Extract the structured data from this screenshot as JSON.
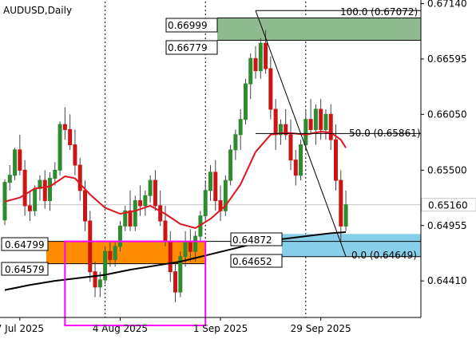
{
  "chart_data": {
    "type": "candlestick",
    "title": "AUDUSD,Daily",
    "y_range": [
      0.6405,
      0.6716
    ],
    "x_index_range": [
      0,
      82
    ],
    "y_ticks": [
      "0.67140",
      "0.66595",
      "0.66050",
      "0.65500",
      "0.64955",
      "0.64410"
    ],
    "current_price": {
      "label": "0.65160",
      "value": 0.6516
    },
    "x_ticks": [
      {
        "label": "7 Jul 2025",
        "index": 3
      },
      {
        "label": "4 Aug 2025",
        "index": 23
      },
      {
        "label": "1 Sep 2025",
        "index": 43
      },
      {
        "label": "29 Sep 2025",
        "index": 63
      }
    ],
    "period_separators": [
      20,
      40,
      60
    ],
    "price_labels": [
      "0.66999",
      "0.66779",
      "0.64872",
      "0.64652",
      "0.64799",
      "0.64579"
    ],
    "fib_labels": {
      "top": "100.0 (0.67072)",
      "mid": "50.0 (0.65861)",
      "bottom": "0.0 (0.64649)"
    },
    "fibonacci": {
      "high": 0.67072,
      "mid": 0.65861,
      "low": 0.64649,
      "start_index": 50,
      "end_index": 68
    },
    "zones": [
      {
        "name": "upper-supply",
        "top": 0.66999,
        "bottom": 0.66779,
        "color": "#8fbc8f"
      },
      {
        "name": "lower-demand",
        "top": 0.64872,
        "bottom": 0.64652,
        "color": "#87ceeb"
      },
      {
        "name": "left-orange",
        "top": 0.64799,
        "bottom": 0.64579,
        "color": "#ff8c00"
      }
    ],
    "magenta_box": {
      "from_index": 12,
      "to_index": 40,
      "top": 0.64799,
      "color": "#ff00ff"
    },
    "colors": {
      "bull": "#2e8b2e",
      "bear": "#cc1414",
      "ma_fast": "#e0141e",
      "ma_slow": "#000000",
      "axis": "#000000",
      "current": "#c8c8c8"
    },
    "candles": [
      [
        0.6501,
        0.6541,
        0.6496,
        0.6538
      ],
      [
        0.6538,
        0.6555,
        0.653,
        0.6545
      ],
      [
        0.6545,
        0.6572,
        0.654,
        0.657
      ],
      [
        0.657,
        0.6585,
        0.6545,
        0.655
      ],
      [
        0.655,
        0.656,
        0.6505,
        0.6515
      ],
      [
        0.6515,
        0.653,
        0.65,
        0.651
      ],
      [
        0.651,
        0.6535,
        0.6505,
        0.6532
      ],
      [
        0.6532,
        0.6545,
        0.652,
        0.654
      ],
      [
        0.654,
        0.655,
        0.6512,
        0.652
      ],
      [
        0.652,
        0.6548,
        0.651,
        0.6542
      ],
      [
        0.6542,
        0.6558,
        0.6535,
        0.655
      ],
      [
        0.655,
        0.6598,
        0.6545,
        0.6595
      ],
      [
        0.6595,
        0.6612,
        0.658,
        0.659
      ],
      [
        0.659,
        0.6605,
        0.657,
        0.6575
      ],
      [
        0.6575,
        0.659,
        0.6545,
        0.6555
      ],
      [
        0.6555,
        0.6562,
        0.652,
        0.653
      ],
      [
        0.653,
        0.654,
        0.649,
        0.65
      ],
      [
        0.65,
        0.651,
        0.644,
        0.645
      ],
      [
        0.645,
        0.646,
        0.6425,
        0.6435
      ],
      [
        0.6435,
        0.645,
        0.6425,
        0.6442
      ],
      [
        0.6442,
        0.6475,
        0.6438,
        0.647
      ],
      [
        0.647,
        0.648,
        0.6455,
        0.6462
      ],
      [
        0.6462,
        0.648,
        0.6455,
        0.6475
      ],
      [
        0.6475,
        0.65,
        0.647,
        0.6495
      ],
      [
        0.6495,
        0.6515,
        0.649,
        0.651
      ],
      [
        0.651,
        0.653,
        0.649,
        0.6495
      ],
      [
        0.6495,
        0.6525,
        0.649,
        0.652
      ],
      [
        0.652,
        0.6535,
        0.6505,
        0.6515
      ],
      [
        0.6515,
        0.653,
        0.6505,
        0.6525
      ],
      [
        0.6525,
        0.6545,
        0.6518,
        0.654
      ],
      [
        0.654,
        0.655,
        0.651,
        0.6515
      ],
      [
        0.6515,
        0.653,
        0.6495,
        0.65
      ],
      [
        0.65,
        0.6515,
        0.6475,
        0.648
      ],
      [
        0.648,
        0.649,
        0.644,
        0.645
      ],
      [
        0.645,
        0.646,
        0.642,
        0.643
      ],
      [
        0.643,
        0.647,
        0.6425,
        0.6465
      ],
      [
        0.6465,
        0.649,
        0.6455,
        0.648
      ],
      [
        0.648,
        0.6492,
        0.646,
        0.647
      ],
      [
        0.647,
        0.649,
        0.646,
        0.6485
      ],
      [
        0.6485,
        0.651,
        0.648,
        0.6505
      ],
      [
        0.6505,
        0.654,
        0.65,
        0.653
      ],
      [
        0.653,
        0.6555,
        0.652,
        0.6548
      ],
      [
        0.6548,
        0.656,
        0.651,
        0.652
      ],
      [
        0.652,
        0.6535,
        0.65,
        0.651
      ],
      [
        0.651,
        0.6545,
        0.6505,
        0.654
      ],
      [
        0.654,
        0.6575,
        0.6535,
        0.657
      ],
      [
        0.657,
        0.659,
        0.656,
        0.6585
      ],
      [
        0.6585,
        0.661,
        0.657,
        0.66
      ],
      [
        0.66,
        0.664,
        0.6595,
        0.6635
      ],
      [
        0.6635,
        0.6665,
        0.662,
        0.666
      ],
      [
        0.666,
        0.6672,
        0.664,
        0.6648
      ],
      [
        0.6648,
        0.668,
        0.664,
        0.6675
      ],
      [
        0.6675,
        0.6688,
        0.6645,
        0.665
      ],
      [
        0.665,
        0.6662,
        0.66,
        0.661
      ],
      [
        0.661,
        0.662,
        0.657,
        0.6585
      ],
      [
        0.6585,
        0.66,
        0.6575,
        0.6595
      ],
      [
        0.6595,
        0.661,
        0.658,
        0.6585
      ],
      [
        0.6585,
        0.66,
        0.655,
        0.656
      ],
      [
        0.656,
        0.657,
        0.6535,
        0.6545
      ],
      [
        0.6545,
        0.658,
        0.654,
        0.6575
      ],
      [
        0.6575,
        0.661,
        0.657,
        0.66
      ],
      [
        0.66,
        0.662,
        0.6585,
        0.659
      ],
      [
        0.659,
        0.6615,
        0.6575,
        0.661
      ],
      [
        0.661,
        0.662,
        0.658,
        0.659
      ],
      [
        0.659,
        0.661,
        0.658,
        0.6605
      ],
      [
        0.6605,
        0.6615,
        0.657,
        0.658
      ],
      [
        0.658,
        0.6595,
        0.653,
        0.654
      ],
      [
        0.654,
        0.655,
        0.648,
        0.6495
      ],
      [
        0.6495,
        0.653,
        0.649,
        0.6516
      ]
    ],
    "ma_fast": [
      [
        0,
        0.6519
      ],
      [
        3,
        0.6523
      ],
      [
        6,
        0.6532
      ],
      [
        9,
        0.6534
      ],
      [
        12,
        0.6544
      ],
      [
        14,
        0.6542
      ],
      [
        17,
        0.6526
      ],
      [
        20,
        0.6513
      ],
      [
        23,
        0.6507
      ],
      [
        26,
        0.651
      ],
      [
        29,
        0.6515
      ],
      [
        32,
        0.6507
      ],
      [
        35,
        0.6497
      ],
      [
        38,
        0.6493
      ],
      [
        41,
        0.6502
      ],
      [
        44,
        0.6515
      ],
      [
        47,
        0.6536
      ],
      [
        50,
        0.6568
      ],
      [
        53,
        0.6585
      ],
      [
        56,
        0.6587
      ],
      [
        60,
        0.6585
      ],
      [
        63,
        0.6588
      ],
      [
        65,
        0.6587
      ],
      [
        67,
        0.658
      ],
      [
        68,
        0.6572
      ]
    ],
    "ma_slow": [
      [
        0,
        0.6432
      ],
      [
        5,
        0.6437
      ],
      [
        10,
        0.6441
      ],
      [
        15,
        0.6444
      ],
      [
        20,
        0.6447
      ],
      [
        25,
        0.6452
      ],
      [
        30,
        0.6456
      ],
      [
        35,
        0.646
      ],
      [
        40,
        0.6466
      ],
      [
        45,
        0.6472
      ],
      [
        50,
        0.6478
      ],
      [
        55,
        0.6482
      ],
      [
        60,
        0.6485
      ],
      [
        65,
        0.6488
      ],
      [
        68,
        0.6489
      ]
    ]
  }
}
